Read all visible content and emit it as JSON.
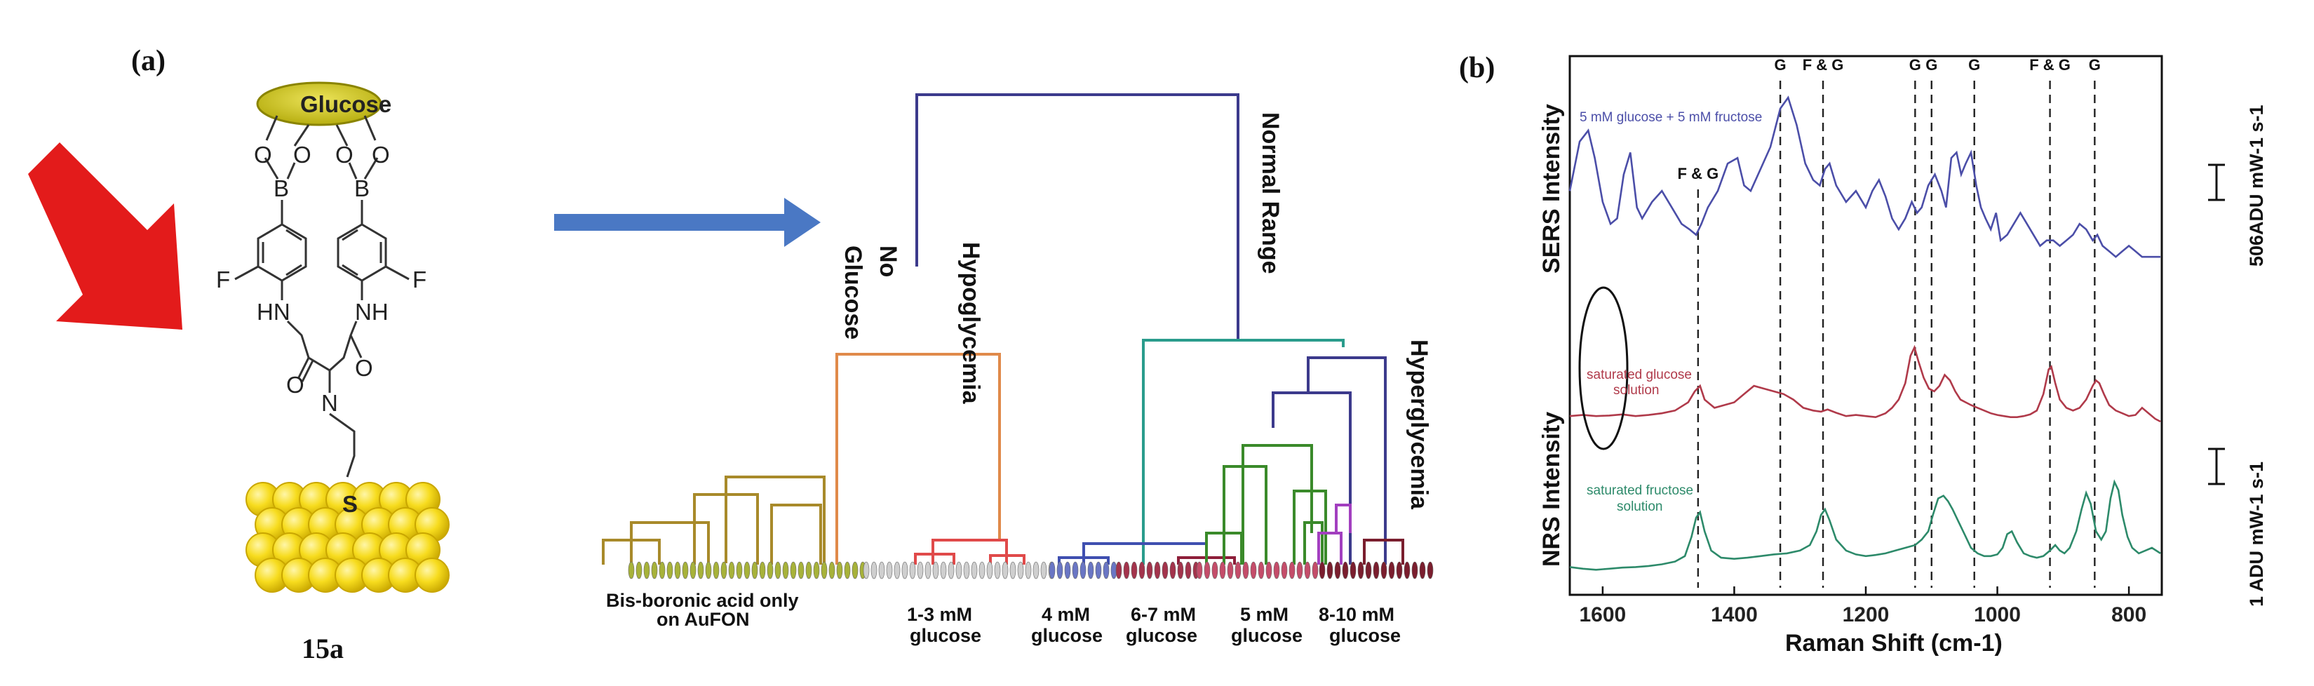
{
  "panel_a": {
    "label": "(a)",
    "molecule": {
      "glucose_label": "Glucose",
      "atoms": {
        "o": "O",
        "b": "B",
        "f": "F",
        "hn": "HN",
        "nh": "NH",
        "n": "N",
        "s": "S"
      },
      "compound_label": "15a"
    },
    "dendrogram": {
      "clusters": {
        "normal": "Normal Range",
        "no_glucose_1": "No",
        "no_glucose_2": "Glucose",
        "hypo": "Hypoglycemia",
        "hyper": "Hyperglycemia"
      },
      "bottom_labels": {
        "bis_1": "Bis-boronic acid only",
        "bis_2": "on AuFON",
        "g13_1": "1-3 mM",
        "g13_2": "glucose",
        "g4_1": "4 mM",
        "g4_2": "glucose",
        "g67_1": "6-7 mM",
        "g67_2": "glucose",
        "g5_1": "5 mM",
        "g5_2": "glucose",
        "g810_1": "8-10 mM",
        "g810_2": "glucose"
      },
      "colors": {
        "top": "#3c3a8c",
        "no_glucose": "#a88a2a",
        "hypo": "#e04a4a",
        "hypo_top": "#e08a4a",
        "four": "#3f4fb0",
        "six": "#8e1e3a",
        "normal": "#2a9c8c",
        "five": "#3a8a2a",
        "five_b": "#a23fbf",
        "ten": "#7a1e2e",
        "hyper": "#3c3a8c"
      }
    }
  },
  "panel_b": {
    "label": "(b)",
    "chart_data": {
      "type": "line",
      "xlabel": "Raman Shift (cm-1)",
      "ylabel_top": "SERS Intensity",
      "ylabel_bottom": "NRS Intensity",
      "xlim": [
        1650,
        750
      ],
      "x_ticks": [
        1600,
        1400,
        1200,
        1000,
        800
      ],
      "series": [
        {
          "name": "5 mM glucose + 5 mM fructose",
          "color": "#4b4ea8",
          "offset": 5.6,
          "x": [
            1650,
            1635,
            1622,
            1612,
            1600,
            1588,
            1578,
            1568,
            1558,
            1548,
            1540,
            1525,
            1510,
            1495,
            1480,
            1468,
            1458,
            1450,
            1440,
            1425,
            1410,
            1395,
            1385,
            1375,
            1360,
            1345,
            1330,
            1318,
            1305,
            1292,
            1280,
            1270,
            1262,
            1255,
            1245,
            1230,
            1215,
            1200,
            1190,
            1180,
            1170,
            1160,
            1150,
            1140,
            1130,
            1122,
            1115,
            1105,
            1095,
            1085,
            1078,
            1070,
            1062,
            1055,
            1048,
            1040,
            1032,
            1025,
            1018,
            1010,
            1002,
            995,
            985,
            975,
            965,
            955,
            945,
            935,
            925,
            915,
            905,
            895,
            885,
            875,
            865,
            855,
            848,
            840,
            830,
            820,
            810,
            800,
            790,
            780,
            770,
            760,
            752
          ],
          "y": [
            1.5,
            2.4,
            2.6,
            2.1,
            1.3,
            0.9,
            1.0,
            1.8,
            2.2,
            1.2,
            1.0,
            1.3,
            1.5,
            1.2,
            0.9,
            0.8,
            0.7,
            0.9,
            1.2,
            1.5,
            2.0,
            2.1,
            1.6,
            1.5,
            1.9,
            2.3,
            3.0,
            3.2,
            2.7,
            2.0,
            1.7,
            1.6,
            1.9,
            2.0,
            1.6,
            1.3,
            1.5,
            1.2,
            1.5,
            1.7,
            1.4,
            1.0,
            0.8,
            1.0,
            1.3,
            1.1,
            1.2,
            1.6,
            1.8,
            1.5,
            1.2,
            2.1,
            2.2,
            1.8,
            2.0,
            2.2,
            1.6,
            1.2,
            1.0,
            0.8,
            1.1,
            0.6,
            0.7,
            0.9,
            1.1,
            0.9,
            0.7,
            0.5,
            0.6,
            0.6,
            0.5,
            0.6,
            0.7,
            0.9,
            0.8,
            0.6,
            0.7,
            0.5,
            0.4,
            0.3,
            0.4,
            0.5,
            0.4,
            0.3,
            0.3,
            0.3,
            0.3
          ]
        },
        {
          "name": "saturated glucose solution",
          "color": "#b03a4a",
          "offset": 2.7,
          "x": [
            1650,
            1630,
            1610,
            1590,
            1570,
            1550,
            1530,
            1510,
            1490,
            1470,
            1460,
            1452,
            1445,
            1430,
            1415,
            1400,
            1385,
            1370,
            1355,
            1340,
            1325,
            1310,
            1295,
            1280,
            1268,
            1258,
            1245,
            1230,
            1215,
            1200,
            1185,
            1170,
            1160,
            1150,
            1140,
            1132,
            1126,
            1120,
            1112,
            1104,
            1096,
            1088,
            1080,
            1072,
            1064,
            1056,
            1048,
            1040,
            1030,
            1020,
            1010,
            1000,
            990,
            980,
            970,
            960,
            950,
            940,
            930,
            922,
            918,
            912,
            905,
            895,
            885,
            875,
            865,
            855,
            850,
            845,
            838,
            830,
            820,
            810,
            800,
            790,
            780,
            770,
            760,
            752
          ],
          "y": [
            0.3,
            0.32,
            0.3,
            0.31,
            0.33,
            0.3,
            0.32,
            0.35,
            0.4,
            0.55,
            0.75,
            0.85,
            0.6,
            0.45,
            0.5,
            0.55,
            0.7,
            0.85,
            0.8,
            0.75,
            0.7,
            0.6,
            0.45,
            0.4,
            0.38,
            0.42,
            0.36,
            0.3,
            0.32,
            0.3,
            0.28,
            0.35,
            0.45,
            0.6,
            0.9,
            1.4,
            1.55,
            1.3,
            1.0,
            0.8,
            0.75,
            0.85,
            1.05,
            0.95,
            0.75,
            0.6,
            0.55,
            0.5,
            0.45,
            0.4,
            0.35,
            0.32,
            0.3,
            0.28,
            0.28,
            0.3,
            0.33,
            0.4,
            0.7,
            1.15,
            1.2,
            0.9,
            0.6,
            0.45,
            0.4,
            0.45,
            0.6,
            0.85,
            0.95,
            0.9,
            0.7,
            0.5,
            0.4,
            0.35,
            0.3,
            0.32,
            0.45,
            0.35,
            0.25,
            0.2
          ]
        },
        {
          "name": "saturated fructose solution",
          "color": "#2d8a6a",
          "offset": 0.0,
          "x": [
            1650,
            1630,
            1610,
            1590,
            1570,
            1550,
            1530,
            1510,
            1490,
            1475,
            1465,
            1458,
            1452,
            1445,
            1435,
            1420,
            1400,
            1380,
            1360,
            1340,
            1320,
            1300,
            1285,
            1275,
            1268,
            1262,
            1255,
            1245,
            1230,
            1215,
            1200,
            1185,
            1170,
            1155,
            1140,
            1125,
            1115,
            1105,
            1098,
            1090,
            1082,
            1075,
            1068,
            1060,
            1050,
            1040,
            1030,
            1020,
            1010,
            1000,
            992,
            985,
            978,
            970,
            960,
            950,
            940,
            930,
            920,
            912,
            905,
            898,
            890,
            880,
            872,
            865,
            858,
            850,
            842,
            835,
            828,
            822,
            816,
            810,
            802,
            795,
            785,
            775,
            765,
            752
          ],
          "y": [
            0.25,
            0.22,
            0.2,
            0.22,
            0.24,
            0.25,
            0.27,
            0.3,
            0.35,
            0.45,
            0.8,
            1.15,
            1.25,
            0.9,
            0.55,
            0.42,
            0.4,
            0.42,
            0.45,
            0.48,
            0.5,
            0.55,
            0.65,
            0.9,
            1.2,
            1.3,
            1.1,
            0.75,
            0.55,
            0.48,
            0.45,
            0.47,
            0.5,
            0.55,
            0.6,
            0.65,
            0.75,
            0.9,
            1.2,
            1.5,
            1.55,
            1.45,
            1.3,
            1.1,
            0.85,
            0.6,
            0.5,
            0.45,
            0.45,
            0.48,
            0.6,
            0.85,
            0.9,
            0.7,
            0.5,
            0.45,
            0.42,
            0.45,
            0.55,
            0.65,
            0.55,
            0.5,
            0.6,
            0.9,
            1.3,
            1.6,
            1.4,
            0.9,
            0.75,
            0.9,
            1.5,
            1.8,
            1.65,
            1.2,
            0.8,
            0.6,
            0.5,
            0.55,
            0.6,
            0.5
          ]
        }
      ],
      "peak_lines": [
        {
          "x": 1455,
          "label": "F & G"
        },
        {
          "x": 1330,
          "label": "G"
        },
        {
          "x": 1265,
          "label": "F & G"
        },
        {
          "x": 1125,
          "label": "G"
        },
        {
          "x": 1100,
          "label": "G"
        },
        {
          "x": 1035,
          "label": "G"
        },
        {
          "x": 920,
          "label": "F & G"
        },
        {
          "x": 852,
          "label": "G"
        }
      ],
      "scale_bars": {
        "top": "506ADU mW-1 s-1",
        "bottom": "1 ADU mW-1 s-1"
      }
    }
  }
}
